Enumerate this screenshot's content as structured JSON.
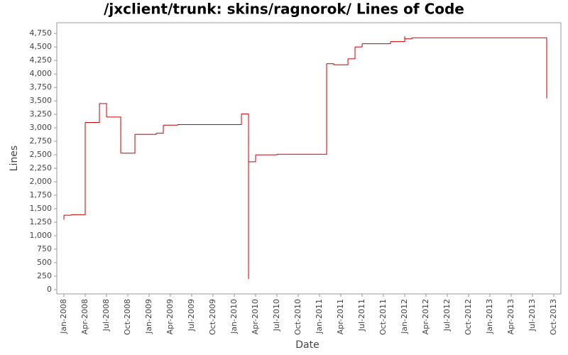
{
  "chart_data": {
    "type": "step",
    "title": "/jxclient/trunk: skins/ragnorok/ Lines of Code",
    "x_label": "Date",
    "y_label": "Lines",
    "color": "#cc0000",
    "x": [
      "2008-01",
      "2008-01",
      "2008-02",
      "2008-04",
      "2008-04",
      "2008-04",
      "2008-04",
      "2008-06",
      "2008-06",
      "2008-07",
      "2008-07",
      "2008-09",
      "2008-11",
      "2009-02",
      "2009-03",
      "2009-05",
      "2010-02",
      "2010-03",
      "2010-03",
      "2010-03",
      "2010-03",
      "2010-04",
      "2010-07",
      "2011-02",
      "2011-03",
      "2011-05",
      "2011-06",
      "2011-06",
      "2011-07",
      "2011-11",
      "2012-01",
      "2012-01",
      "2012-02",
      "2013-09"
    ],
    "values": [
      1300,
      1380,
      1390,
      1400,
      1390,
      1500,
      3100,
      3380,
      3450,
      3420,
      3200,
      2530,
      2880,
      2900,
      3050,
      3060,
      3260,
      2280,
      2370,
      200,
      2370,
      2500,
      2510,
      4190,
      4170,
      4280,
      4400,
      4500,
      4560,
      4600,
      4700,
      4650,
      4670,
      3550
    ],
    "xlim": [
      "2007-12",
      "2013-11"
    ],
    "xticks": [
      {
        "value": "2008-01",
        "label": "Jan-2008"
      },
      {
        "value": "2008-04",
        "label": "Apr-2008"
      },
      {
        "value": "2008-07",
        "label": "Jul-2008"
      },
      {
        "value": "2008-10",
        "label": "Oct-2008"
      },
      {
        "value": "2009-01",
        "label": "Jan-2009"
      },
      {
        "value": "2009-04",
        "label": "Apr-2009"
      },
      {
        "value": "2009-07",
        "label": "Jul-2009"
      },
      {
        "value": "2009-10",
        "label": "Oct-2009"
      },
      {
        "value": "2010-01",
        "label": "Jan-2010"
      },
      {
        "value": "2010-04",
        "label": "Apr-2010"
      },
      {
        "value": "2010-07",
        "label": "Jul-2010"
      },
      {
        "value": "2010-10",
        "label": "Oct-2010"
      },
      {
        "value": "2011-01",
        "label": "Jan-2011"
      },
      {
        "value": "2011-04",
        "label": "Apr-2011"
      },
      {
        "value": "2011-07",
        "label": "Jul-2011"
      },
      {
        "value": "2011-10",
        "label": "Oct-2011"
      },
      {
        "value": "2012-01",
        "label": "Jan-2012"
      },
      {
        "value": "2012-04",
        "label": "Apr-2012"
      },
      {
        "value": "2012-07",
        "label": "Jul-2012"
      },
      {
        "value": "2012-10",
        "label": "Oct-2012"
      },
      {
        "value": "2013-01",
        "label": "Jan-2013"
      },
      {
        "value": "2013-04",
        "label": "Apr-2013"
      },
      {
        "value": "2013-07",
        "label": "Jul-2013"
      },
      {
        "value": "2013-10",
        "label": "Oct-2013"
      }
    ],
    "ylim": [
      -80,
      4950
    ],
    "yticks": [
      0,
      250,
      500,
      750,
      {
        "value": 1000,
        "label": "1,000"
      },
      {
        "value": 1250,
        "label": "1,250"
      },
      {
        "value": 1500,
        "label": "1,500"
      },
      {
        "value": 1750,
        "label": "1,750"
      },
      {
        "value": 2000,
        "label": "2,000"
      },
      {
        "value": 2250,
        "label": "2,250"
      },
      {
        "value": 2500,
        "label": "2,500"
      },
      {
        "value": 2750,
        "label": "2,750"
      },
      {
        "value": 3000,
        "label": "3,000"
      },
      {
        "value": 3250,
        "label": "3,250"
      },
      {
        "value": 3500,
        "label": "3,500"
      },
      {
        "value": 3750,
        "label": "3,750"
      },
      {
        "value": 4000,
        "label": "4,000"
      },
      {
        "value": 4250,
        "label": "4,250"
      },
      {
        "value": 4500,
        "label": "4,500"
      },
      {
        "value": 4750,
        "label": "4,750"
      }
    ]
  }
}
